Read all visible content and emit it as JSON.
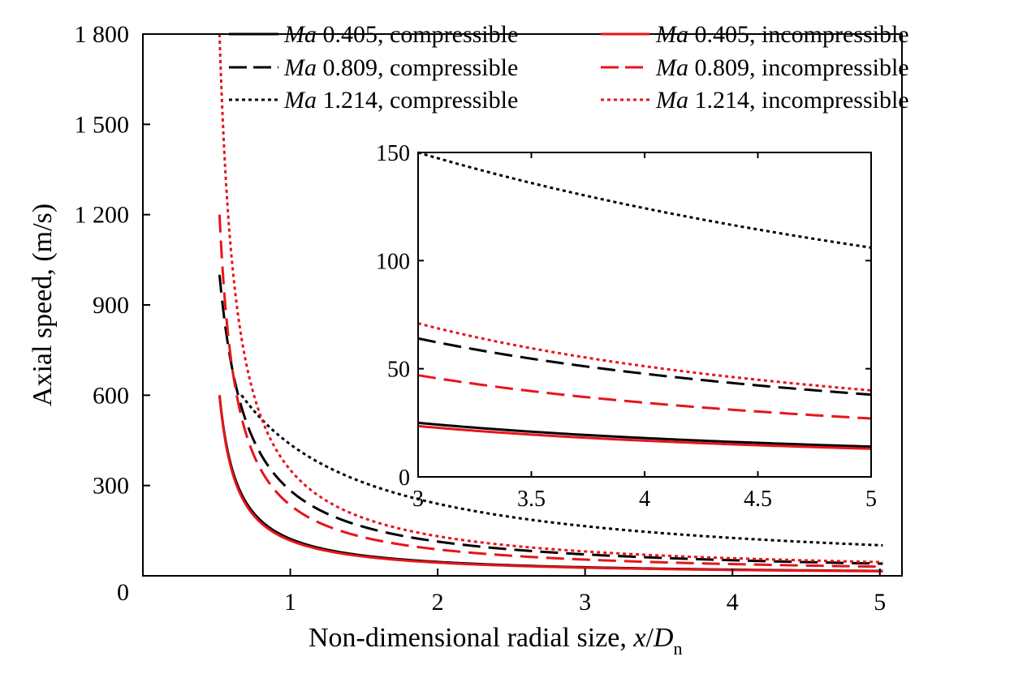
{
  "chart_data": {
    "type": "line",
    "title": "",
    "xlabel_main": "Non-dimensional radial size, ",
    "xlabel_var": "x",
    "xlabel_slash": "/",
    "xlabel_D": "D",
    "xlabel_sub": "n",
    "ylabel": "Axial speed, (m/s)",
    "xlim": [
      0,
      5.15
    ],
    "ylim": [
      0,
      1800
    ],
    "x_ticks": [
      1,
      2,
      3,
      4,
      5
    ],
    "x_tick_labels": [
      "1",
      "2",
      "3",
      "4",
      "5"
    ],
    "y_ticks": [
      0,
      300,
      600,
      900,
      1200,
      1500,
      1800
    ],
    "y_tick_labels": [
      "0",
      "300",
      "600",
      "900",
      "1 200",
      "1 500",
      "1 800"
    ],
    "legend_ma": "Ma",
    "series": [
      {
        "name": "Ma 0.405, compressible",
        "mach": "0.405",
        "kind": "compressible",
        "color": "#000000",
        "style": "solid",
        "x_start": 0.52,
        "y_start": 600,
        "K": 74
      },
      {
        "name": "Ma 0.405, incompressible",
        "mach": "0.405",
        "kind": "incompressible",
        "color": "#e8141b",
        "style": "solid",
        "x_start": 0.52,
        "y_start": 600,
        "K": 70
      },
      {
        "name": "Ma 0.809, compressible",
        "mach": "0.809",
        "kind": "compressible",
        "color": "#000000",
        "style": "dashed",
        "x_start": 0.52,
        "y_start": 1000,
        "K": 190
      },
      {
        "name": "Ma 0.809, incompressible",
        "mach": "0.809",
        "kind": "incompressible",
        "color": "#e8141b",
        "style": "dashed",
        "x_start": 0.52,
        "y_start": 1200,
        "K": 140
      },
      {
        "name": "Ma 1.214, compressible",
        "mach": "1.214",
        "kind": "compressible",
        "color": "#000000",
        "style": "dotted",
        "x_start": 0.67,
        "y_start": 600,
        "K": 530
      },
      {
        "name": "Ma 1.214, incompressible",
        "mach": "1.214",
        "kind": "incompressible",
        "color": "#e8141b",
        "style": "dotted",
        "x_start": 0.52,
        "y_start": 1800,
        "K": 210
      }
    ],
    "inset": {
      "xlim": [
        3,
        5
      ],
      "ylim": [
        0,
        150
      ],
      "x_ticks": [
        3,
        3.5,
        4,
        4.5,
        5
      ],
      "x_tick_labels": [
        "3",
        "3.5",
        "4",
        "4.5",
        "5"
      ],
      "y_ticks": [
        0,
        50,
        100,
        150
      ],
      "y_tick_labels": [
        "0",
        "50",
        "100",
        "150"
      ],
      "series": [
        {
          "ref": 0,
          "y_at_3": 25,
          "y_at_5": 14
        },
        {
          "ref": 1,
          "y_at_3": 23.5,
          "y_at_5": 13
        },
        {
          "ref": 2,
          "y_at_3": 64,
          "y_at_5": 38
        },
        {
          "ref": 3,
          "y_at_3": 47,
          "y_at_5": 27
        },
        {
          "ref": 4,
          "y_at_3": 150,
          "y_at_5": 106
        },
        {
          "ref": 5,
          "y_at_3": 71,
          "y_at_5": 40
        }
      ]
    }
  }
}
